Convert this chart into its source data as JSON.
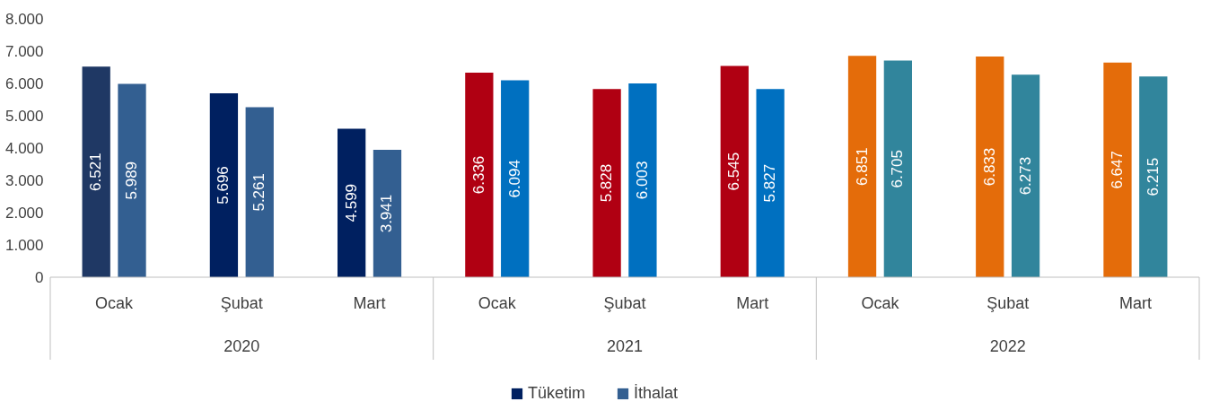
{
  "chart_data": {
    "type": "bar",
    "categories": [
      "Ocak",
      "Şubat",
      "Mart",
      "Ocak",
      "Şubat",
      "Mart",
      "Ocak",
      "Şubat",
      "Mart"
    ],
    "annotations": [
      "2020",
      "2021",
      "2022"
    ],
    "series": [
      {
        "name": "Tüketim",
        "color": "#002060",
        "colors": [
          "#1f3864",
          "#002060",
          "#002060",
          "#b00012",
          "#b00012",
          "#b00012",
          "#e46c0a",
          "#e46c0a",
          "#e46c0a"
        ],
        "values": [
          6521,
          5696,
          4599,
          6336,
          5828,
          6545,
          6851,
          6833,
          6647
        ],
        "value_labels": [
          "6.521",
          "5.696",
          "4.599",
          "6.336",
          "5.828",
          "6.545",
          "6.851",
          "6.833",
          "6.647"
        ]
      },
      {
        "name": "İthalat",
        "color": "#335f91",
        "colors": [
          "#335f91",
          "#335f91",
          "#335f91",
          "#0070c0",
          "#0070c0",
          "#0070c0",
          "#31859c",
          "#31859c",
          "#31859c"
        ],
        "values": [
          5989,
          5261,
          3941,
          6094,
          6003,
          5827,
          6705,
          6273,
          6215
        ],
        "value_labels": [
          "5.989",
          "5.261",
          "3.941",
          "6.094",
          "6.003",
          "5.827",
          "6.705",
          "6.273",
          "6.215"
        ]
      }
    ],
    "ylim": [
      0,
      8000
    ],
    "yticks": [
      {
        "value": 0,
        "label": "0"
      },
      {
        "value": 1000,
        "label": "1.000"
      },
      {
        "value": 2000,
        "label": "2.000"
      },
      {
        "value": 3000,
        "label": "3.000"
      },
      {
        "value": 4000,
        "label": "4.000"
      },
      {
        "value": 5000,
        "label": "5.000"
      },
      {
        "value": 6000,
        "label": "6.000"
      },
      {
        "value": 7000,
        "label": "7.000"
      },
      {
        "value": 8000,
        "label": "8.000"
      }
    ],
    "legend": "bottom"
  }
}
